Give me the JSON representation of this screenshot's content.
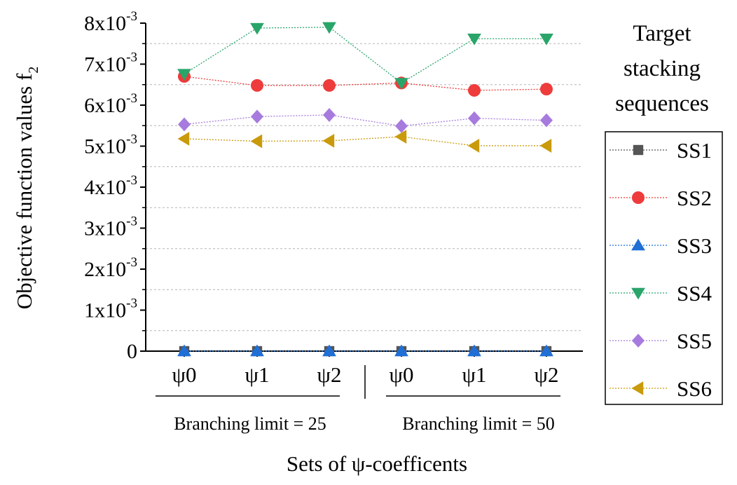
{
  "chart_data": {
    "type": "line",
    "ylabel": "Objective function values f",
    "ylabel_subscript": "2",
    "xlabel": "Sets of ψ-coefficents",
    "categories": [
      "ψ0",
      "ψ1",
      "ψ2",
      "ψ0",
      "ψ1",
      "ψ2"
    ],
    "groups": [
      {
        "label": "Branching limit = 25"
      },
      {
        "label": "Branching limit = 50"
      }
    ],
    "ylim": [
      0,
      0.008
    ],
    "yticks": [
      {
        "value": 0,
        "base": "0",
        "exp": ""
      },
      {
        "value": 0.001,
        "base": "1x10",
        "exp": "-3"
      },
      {
        "value": 0.002,
        "base": "2x10",
        "exp": "-3"
      },
      {
        "value": 0.003,
        "base": "3x10",
        "exp": "-3"
      },
      {
        "value": 0.004,
        "base": "4x10",
        "exp": "-3"
      },
      {
        "value": 0.005,
        "base": "5x10",
        "exp": "-3"
      },
      {
        "value": 0.006,
        "base": "6x10",
        "exp": "-3"
      },
      {
        "value": 0.007,
        "base": "7x10",
        "exp": "-3"
      },
      {
        "value": 0.008,
        "base": "8x10",
        "exp": "-3"
      }
    ],
    "grid": "horizontal dashed minor",
    "legend_title": [
      "Target",
      "stacking",
      "sequences"
    ],
    "legend_position": "right",
    "series": [
      {
        "name": "SS1",
        "color": "#555555",
        "marker": "square",
        "values": [
          0,
          0,
          0,
          0,
          0,
          0
        ]
      },
      {
        "name": "SS2",
        "color": "#ee3b3b",
        "marker": "circle",
        "values": [
          0.0067,
          0.00648,
          0.00648,
          0.00654,
          0.00636,
          0.00639
        ]
      },
      {
        "name": "SS3",
        "color": "#1f6fd6",
        "marker": "triangle-up",
        "values": [
          0,
          0,
          0,
          0,
          0,
          0
        ]
      },
      {
        "name": "SS4",
        "color": "#2aa56a",
        "marker": "triangle-down",
        "values": [
          0.00676,
          0.00788,
          0.0079,
          0.00654,
          0.00762,
          0.00762
        ]
      },
      {
        "name": "SS5",
        "color": "#a77bde",
        "marker": "diamond",
        "values": [
          0.00553,
          0.00572,
          0.00576,
          0.00549,
          0.00568,
          0.00563
        ]
      },
      {
        "name": "SS6",
        "color": "#c99a0c",
        "marker": "triangle-left",
        "values": [
          0.00518,
          0.00512,
          0.00513,
          0.00523,
          0.00501,
          0.00501
        ]
      }
    ]
  }
}
